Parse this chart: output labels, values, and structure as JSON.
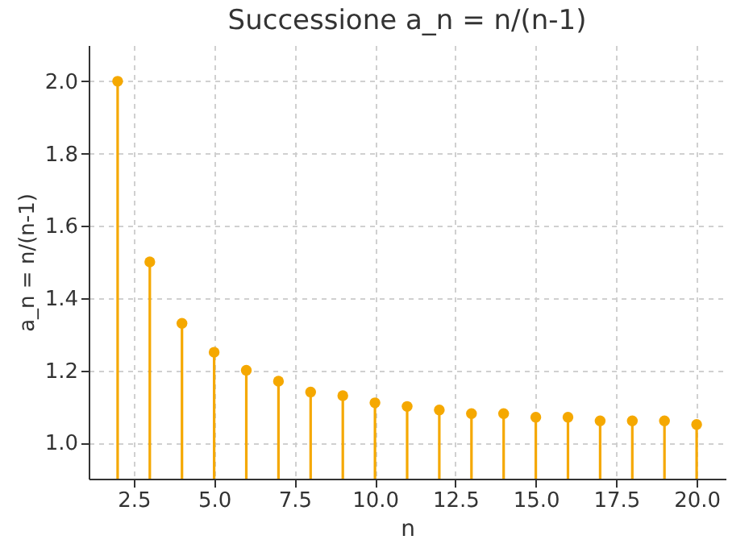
{
  "chart_data": {
    "type": "lollipop",
    "title": "Successione a_n = n/(n-1)",
    "xlabel": "n",
    "ylabel": "a_n = n/(n-1)",
    "x": [
      2,
      3,
      4,
      5,
      6,
      7,
      8,
      9,
      10,
      11,
      12,
      13,
      14,
      15,
      16,
      17,
      18,
      19,
      20
    ],
    "series": [
      {
        "color": "#f5a800",
        "values": [
          2.0,
          1.5,
          1.33,
          1.25,
          1.2,
          1.17,
          1.14,
          1.13,
          1.11,
          1.1,
          1.09,
          1.08,
          1.08,
          1.07,
          1.07,
          1.06,
          1.06,
          1.06,
          1.05
        ]
      }
    ],
    "xlim": [
      1.1,
      20.9
    ],
    "ylim": [
      0.9,
      2.1
    ],
    "xticks": [
      {
        "value": 2.5,
        "label": "2.5"
      },
      {
        "value": 5,
        "label": "5.0"
      },
      {
        "value": 7.5,
        "label": "7.5"
      },
      {
        "value": 10,
        "label": "10.0"
      },
      {
        "value": 12.5,
        "label": "12.5"
      },
      {
        "value": 15,
        "label": "15.0"
      },
      {
        "value": 17.5,
        "label": "17.5"
      },
      {
        "value": 20,
        "label": "20.0"
      }
    ],
    "yticks": [
      {
        "value": 1,
        "label": "1.0"
      },
      {
        "value": 1.2,
        "label": "1.2"
      },
      {
        "value": 1.4,
        "label": "1.4"
      },
      {
        "value": 1.6,
        "label": "1.6"
      },
      {
        "value": 1.8,
        "label": "1.8"
      },
      {
        "value": 2,
        "label": "2.0"
      }
    ],
    "grid": true,
    "marker": "circle"
  }
}
